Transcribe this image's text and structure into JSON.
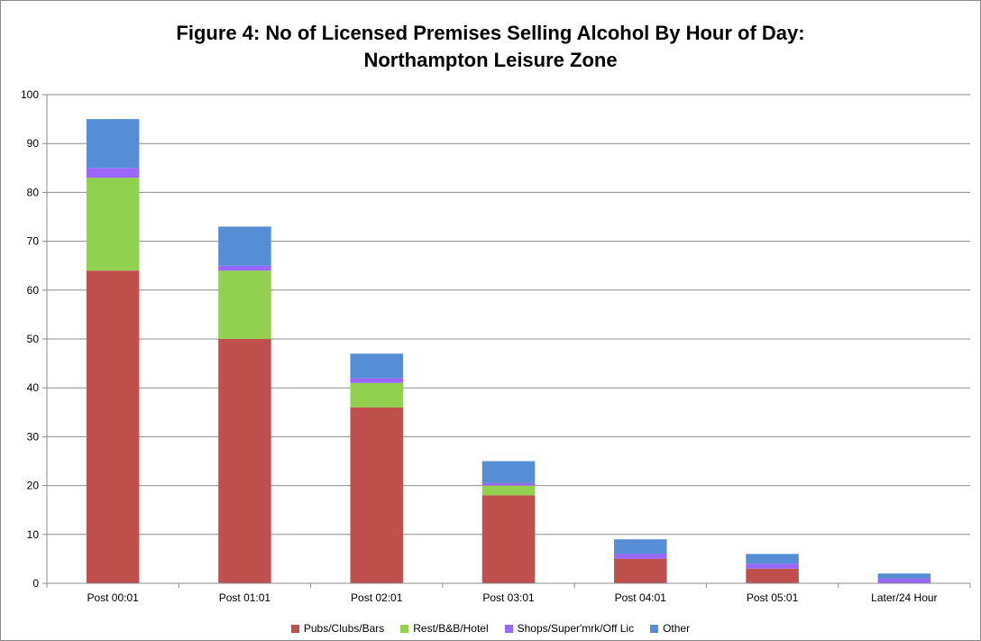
{
  "chart_data": {
    "type": "bar",
    "stacked": true,
    "title_line1": "Figure 4: No of Licensed Premises Selling Alcohol By Hour of Day:",
    "title_line2": "Northampton Leisure Zone",
    "xlabel": "",
    "ylabel": "",
    "ylim": [
      0,
      100
    ],
    "yticks": [
      0,
      10,
      20,
      30,
      40,
      50,
      60,
      70,
      80,
      90,
      100
    ],
    "grid": true,
    "legend_position": "bottom",
    "categories": [
      "Post 00:01",
      "Post 01:01",
      "Post 02:01",
      "Post 03:01",
      "Post 04:01",
      "Post 05:01",
      "Later/24 Hour"
    ],
    "series": [
      {
        "name": "Pubs/Clubs/Bars",
        "color": "#c0504d",
        "values": [
          64,
          50,
          36,
          18,
          5,
          3,
          0
        ]
      },
      {
        "name": "Rest/B&B/Hotel",
        "color": "#92d050",
        "values": [
          19,
          14,
          5,
          2,
          0,
          0,
          0
        ]
      },
      {
        "name": "Shops/Super'mrk/Off Lic",
        "color": "#9966ff",
        "values": [
          2,
          1,
          1,
          0.5,
          1,
          1,
          1
        ]
      },
      {
        "name": "Other",
        "color": "#558ed5",
        "values": [
          10,
          8,
          5,
          4.5,
          3,
          2,
          1
        ]
      }
    ]
  }
}
